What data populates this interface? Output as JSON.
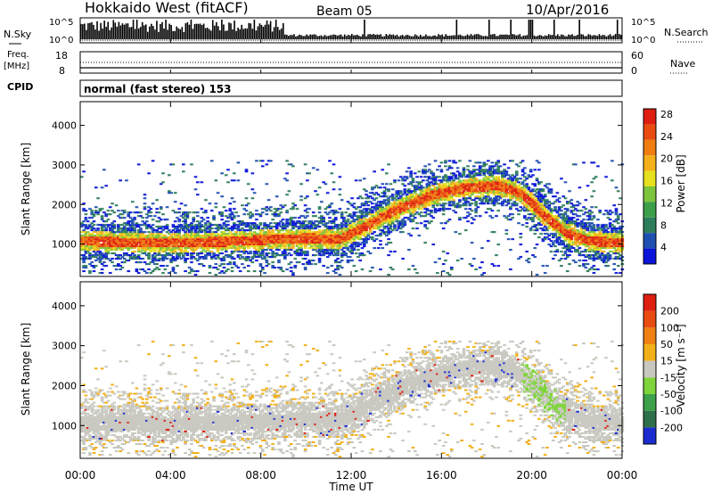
{
  "header": {
    "title": "Hokkaido West (fitACF)",
    "beam": "Beam 05",
    "date": "10/Apr/2016"
  },
  "top_panels": {
    "nsky_label": "N.Sky",
    "nsky_top_tick": "10^5",
    "nsky_bottom_tick": "10^0",
    "nsearch_label": "N.Search",
    "freq_label": "Freq.",
    "freq_unit": "[MHz]",
    "freq_ticks": [
      "18",
      "8"
    ],
    "nave_label": "Nave",
    "nave_ticks": [
      "60",
      "0"
    ],
    "cpid_label": "CPID",
    "cpid_text": "normal (fast stereo) 153"
  },
  "time_axis": {
    "label": "Time UT",
    "ticks": [
      "00:00",
      "04:00",
      "08:00",
      "12:00",
      "16:00",
      "20:00",
      "00:00"
    ]
  },
  "chart_data": [
    {
      "type": "heatmap",
      "quantity": "Power",
      "ylabel": "Slant Range [km]",
      "xlabel": "Time UT",
      "y_ticks": [
        1000,
        2000,
        3000,
        4000
      ],
      "ylim": [
        180,
        4600
      ],
      "xlim": [
        0,
        24
      ],
      "colorbar_label": "Power [dB]",
      "colorbar_ticks": [
        "4",
        "8",
        "12",
        "16",
        "20",
        "24",
        "28"
      ],
      "colorbar_colors": [
        "#0a14d8",
        "#1f4fb0",
        "#2e7d5a",
        "#3ca04a",
        "#7cc43c",
        "#e6e01e",
        "#f3b01a",
        "#f07d12",
        "#e84c10",
        "#dd1e10"
      ],
      "band_center_km": [
        {
          "t": 0,
          "r": 1050
        },
        {
          "t": 2,
          "r": 1020
        },
        {
          "t": 4,
          "r": 1000
        },
        {
          "t": 6,
          "r": 1030
        },
        {
          "t": 8,
          "r": 1080
        },
        {
          "t": 10,
          "r": 1120
        },
        {
          "t": 11.5,
          "r": 1100
        },
        {
          "t": 12.5,
          "r": 1400
        },
        {
          "t": 14,
          "r": 1850
        },
        {
          "t": 15.5,
          "r": 2200
        },
        {
          "t": 17,
          "r": 2400
        },
        {
          "t": 18.5,
          "r": 2450
        },
        {
          "t": 19.5,
          "r": 2250
        },
        {
          "t": 20.5,
          "r": 1700
        },
        {
          "t": 21.5,
          "r": 1250
        },
        {
          "t": 22.5,
          "r": 1050
        },
        {
          "t": 24,
          "r": 1000
        }
      ]
    },
    {
      "type": "heatmap",
      "quantity": "Velocity",
      "ylabel": "Slant Range [km]",
      "xlabel": "Time UT",
      "y_ticks": [
        1000,
        2000,
        3000,
        4000
      ],
      "ylim": [
        180,
        4600
      ],
      "xlim": [
        0,
        24
      ],
      "colorbar_label": "Velocity [m s⁻¹]",
      "colorbar_ticks": [
        "200",
        "100",
        "50",
        "15",
        "-15",
        "-50",
        "-100",
        "-200"
      ],
      "colorbar_colors": [
        "#1a2bd0",
        "#2f6f4a",
        "#3da04a",
        "#7ed43a",
        "#c8c8c0",
        "#f2b01a",
        "#f08012",
        "#e84c10",
        "#dd1e10"
      ],
      "dominant_color": "#c8c8c0"
    }
  ]
}
